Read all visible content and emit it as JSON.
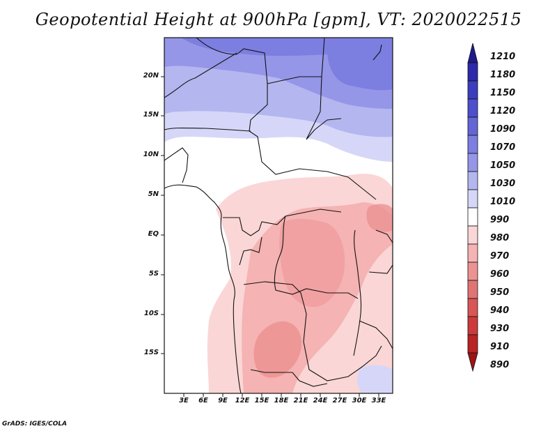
{
  "title": "Geopotential Height at 900hPa [gpm], VT: 2020022515",
  "credit": "GrADS: IGES/COLA",
  "lat_labels": [
    "20N",
    "15N",
    "10N",
    "5N",
    "EQ",
    "5S",
    "10S",
    "15S"
  ],
  "lon_labels": [
    "3E",
    "6E",
    "9E",
    "12E",
    "15E",
    "18E",
    "21E",
    "24E",
    "27E",
    "30E",
    "33E"
  ],
  "colorbar": {
    "levels": [
      "1210",
      "1180",
      "1150",
      "1120",
      "1090",
      "1070",
      "1050",
      "1030",
      "1010",
      "990",
      "980",
      "970",
      "960",
      "950",
      "940",
      "930",
      "910",
      "890"
    ],
    "colors": [
      "#1f1a8c",
      "#2c2aa8",
      "#3c3dbd",
      "#4d4fcc",
      "#6466d6",
      "#7c7ee0",
      "#9596e8",
      "#b4b6f0",
      "#d6d7f8",
      "#ffffff",
      "#fbd6d6",
      "#f5b3b3",
      "#ec9292",
      "#e07474",
      "#d85656",
      "#cc3b3b",
      "#b82424",
      "#9c1414"
    ]
  },
  "map": {
    "field": "Geopotential Height 900hPa",
    "units": "gpm",
    "valid_time": "2020022515"
  }
}
